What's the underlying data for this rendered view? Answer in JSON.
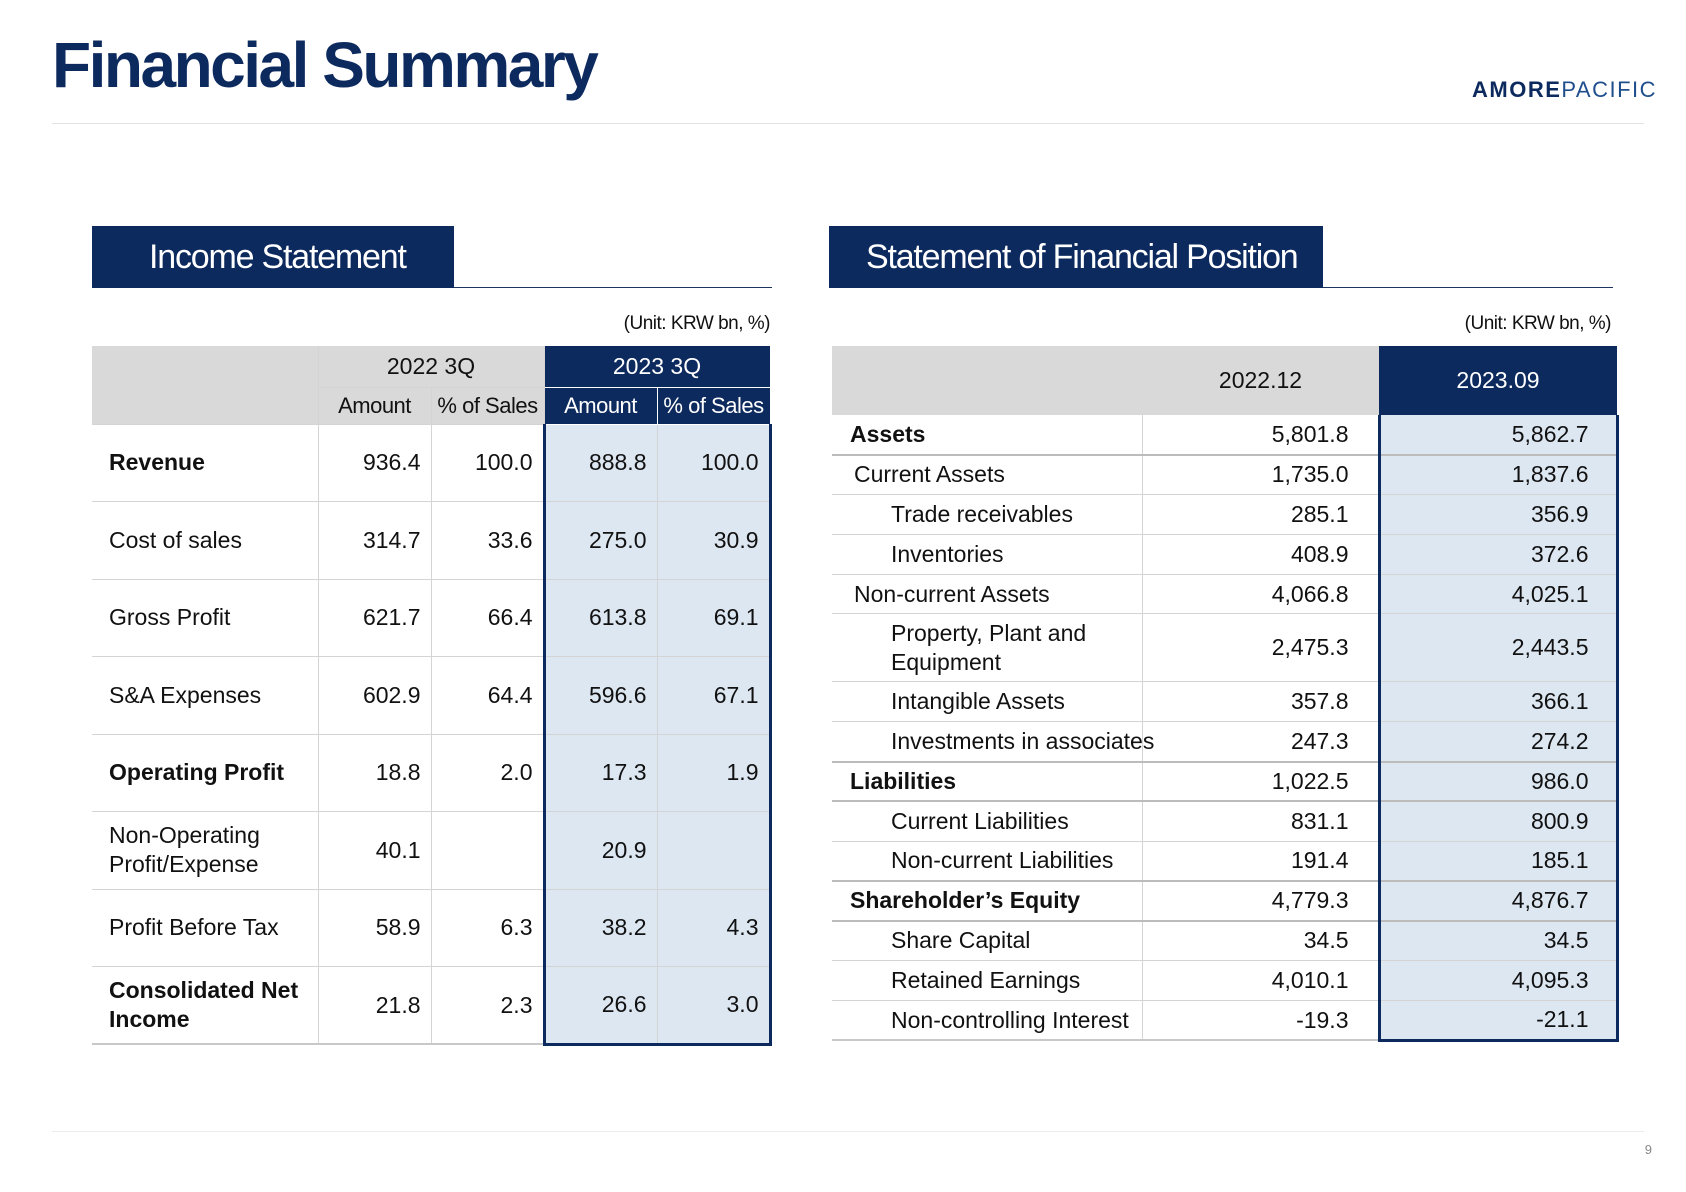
{
  "page": {
    "title": "Financial Summary",
    "brand": {
      "part1": "AMORE",
      "part2": "PACIFIC"
    },
    "page_number": "9"
  },
  "income": {
    "heading": "Income Statement",
    "unit": "(Unit: KRW bn, %)",
    "periods": [
      "2022 3Q",
      "2023 3Q"
    ],
    "subheaders": [
      "Amount",
      "% of Sales",
      "Amount",
      "% of Sales"
    ],
    "rows": [
      {
        "label": "Revenue",
        "values": [
          "936.4",
          "100.0",
          "888.8",
          "100.0"
        ]
      },
      {
        "label": "Cost of sales",
        "values": [
          "314.7",
          "33.6",
          "275.0",
          "30.9"
        ]
      },
      {
        "label": "Gross Profit",
        "values": [
          "621.7",
          "66.4",
          "613.8",
          "69.1"
        ]
      },
      {
        "label": "S&A Expenses",
        "values": [
          "602.9",
          "64.4",
          "596.6",
          "67.1"
        ]
      },
      {
        "label": "Operating Profit",
        "values": [
          "18.8",
          "2.0",
          "17.3",
          "1.9"
        ]
      },
      {
        "label": "Non-Operating Profit/Expense",
        "values": [
          "40.1",
          "",
          "20.9",
          ""
        ]
      },
      {
        "label": "Profit Before Tax",
        "values": [
          "58.9",
          "6.3",
          "38.2",
          "4.3"
        ]
      },
      {
        "label": "Consolidated Net Income",
        "values": [
          "21.8",
          "2.3",
          "26.6",
          "3.0"
        ]
      }
    ]
  },
  "position": {
    "heading": "Statement of Financial Position",
    "unit": "(Unit: KRW bn, %)",
    "periods": [
      "2022.12",
      "2023.09"
    ],
    "rows": [
      {
        "label": "Assets",
        "values": [
          "5,801.8",
          "5,862.7"
        ]
      },
      {
        "label": "Current Assets",
        "values": [
          "1,735.0",
          "1,837.6"
        ]
      },
      {
        "label": "Trade receivables",
        "values": [
          "285.1",
          "356.9"
        ]
      },
      {
        "label": "Inventories",
        "values": [
          "408.9",
          "372.6"
        ]
      },
      {
        "label": "Non-current Assets",
        "values": [
          "4,066.8",
          "4,025.1"
        ]
      },
      {
        "label": "Property, Plant and Equipment",
        "values": [
          "2,475.3",
          "2,443.5"
        ]
      },
      {
        "label": "Intangible Assets",
        "values": [
          "357.8",
          "366.1"
        ]
      },
      {
        "label": "Investments in associates",
        "values": [
          "247.3",
          "274.2"
        ]
      },
      {
        "label": "Liabilities",
        "values": [
          "1,022.5",
          "986.0"
        ]
      },
      {
        "label": "Current Liabilities",
        "values": [
          "831.1",
          "800.9"
        ]
      },
      {
        "label": "Non-current Liabilities",
        "values": [
          "191.4",
          "185.1"
        ]
      },
      {
        "label": "Shareholder’s Equity",
        "values": [
          "4,779.3",
          "4,876.7"
        ]
      },
      {
        "label": "Share Capital",
        "values": [
          "34.5",
          "34.5"
        ]
      },
      {
        "label": "Retained Earnings",
        "values": [
          "4,010.1",
          "4,095.3"
        ]
      },
      {
        "label": "Non-controlling Interest",
        "values": [
          "-19.3",
          "-21.1"
        ]
      }
    ]
  }
}
